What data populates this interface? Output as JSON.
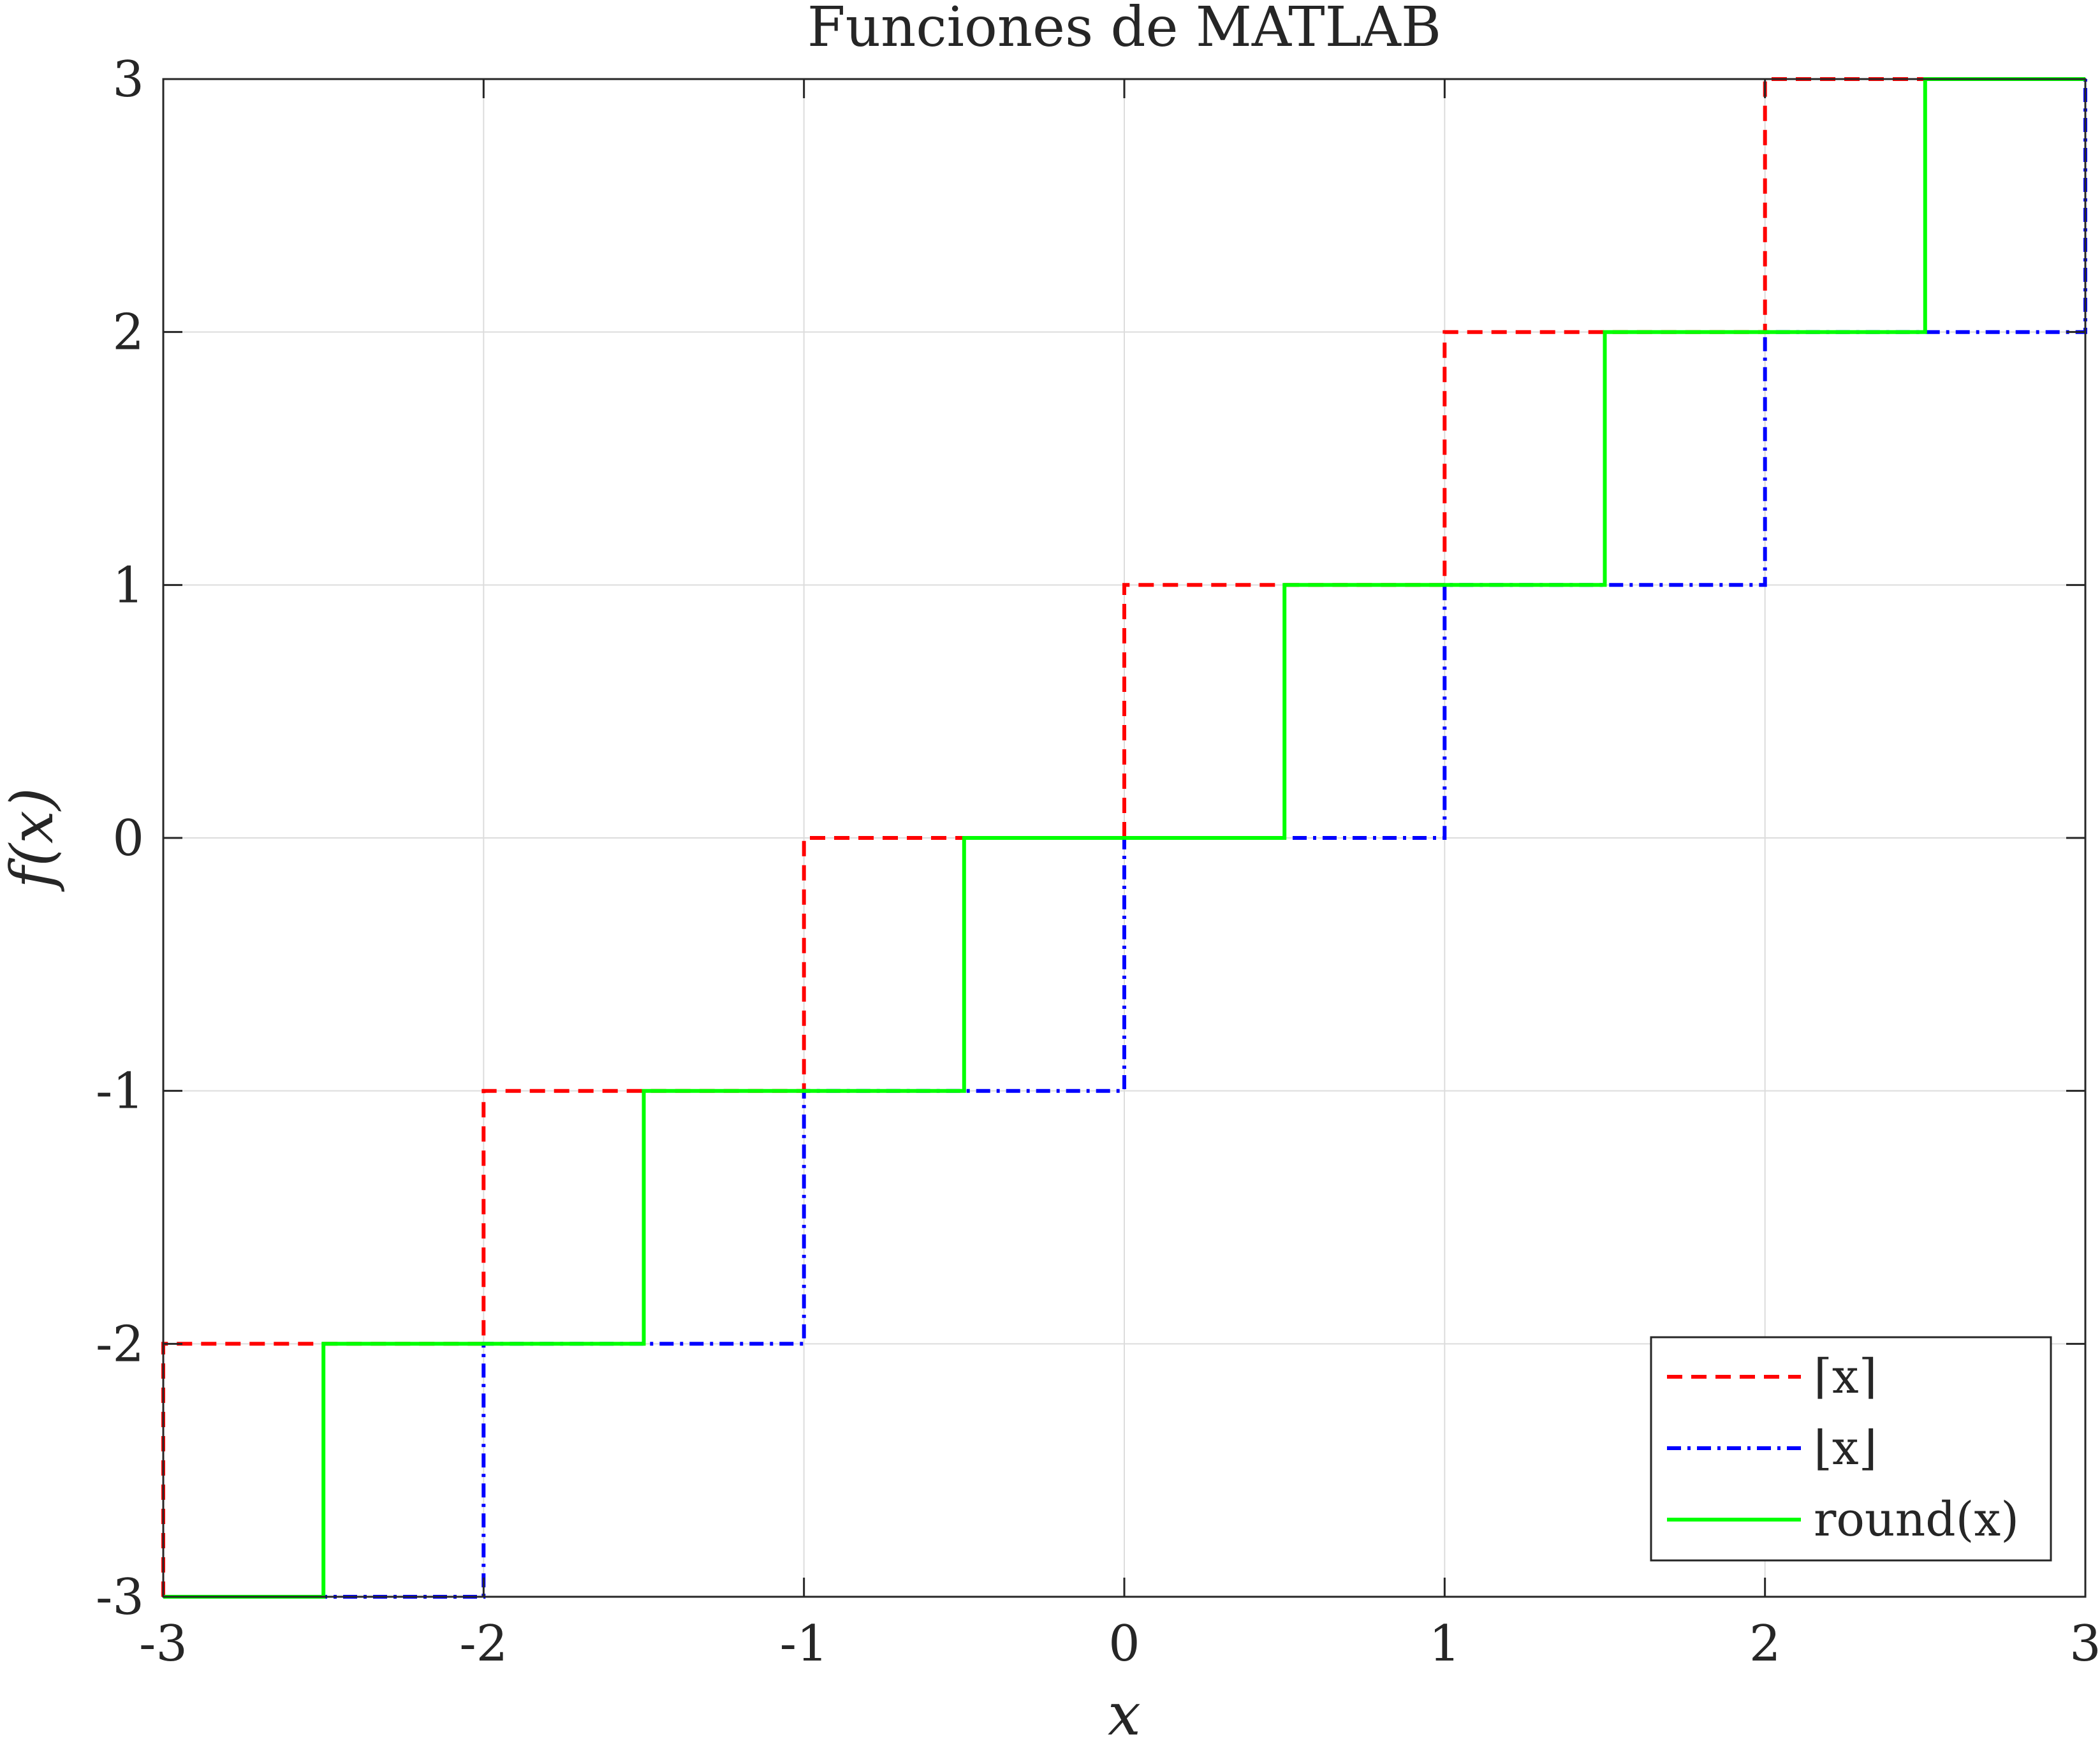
{
  "chart_data": {
    "type": "line",
    "title": "Funciones de MATLAB",
    "xlabel": "x",
    "ylabel": "f(x)",
    "xlim": [
      -3,
      3
    ],
    "ylim": [
      -3,
      3
    ],
    "x_ticks": [
      -3,
      -2,
      -1,
      0,
      1,
      2,
      3
    ],
    "y_ticks": [
      -3,
      -2,
      -1,
      0,
      1,
      2,
      3
    ],
    "x_tick_labels": [
      "-3",
      "-2",
      "-1",
      "0",
      "1",
      "2",
      "3"
    ],
    "y_tick_labels": [
      "-3",
      "-2",
      "-1",
      "0",
      "1",
      "2",
      "3"
    ],
    "grid": true,
    "legend_position": "bottom-right",
    "series": [
      {
        "name": "⌈x⌉",
        "function": "ceil",
        "color": "#ff0000",
        "line_style": "dashed",
        "x": [
          -3,
          -3,
          -2,
          -2,
          -1,
          -1,
          0,
          0,
          1,
          1,
          2,
          2,
          3
        ],
        "y": [
          -3,
          -2,
          -2,
          -1,
          -1,
          0,
          0,
          1,
          1,
          2,
          2,
          3,
          3
        ]
      },
      {
        "name": "⌊x⌋",
        "function": "floor",
        "color": "#0000ff",
        "line_style": "dashdot",
        "x": [
          -3,
          -2,
          -2,
          -1,
          -1,
          0,
          0,
          1,
          1,
          2,
          2,
          3,
          3
        ],
        "y": [
          -3,
          -3,
          -2,
          -2,
          -1,
          -1,
          0,
          0,
          1,
          1,
          2,
          2,
          3
        ]
      },
      {
        "name": "round(x)",
        "function": "round",
        "color": "#00ff00",
        "line_style": "solid",
        "x": [
          -3,
          -2.5,
          -2.5,
          -1.5,
          -1.5,
          -0.5,
          -0.5,
          0.5,
          0.5,
          1.5,
          1.5,
          2.5,
          2.5,
          3
        ],
        "y": [
          -3,
          -3,
          -2,
          -2,
          -1,
          -1,
          0,
          0,
          1,
          1,
          2,
          2,
          3,
          3
        ]
      }
    ]
  }
}
